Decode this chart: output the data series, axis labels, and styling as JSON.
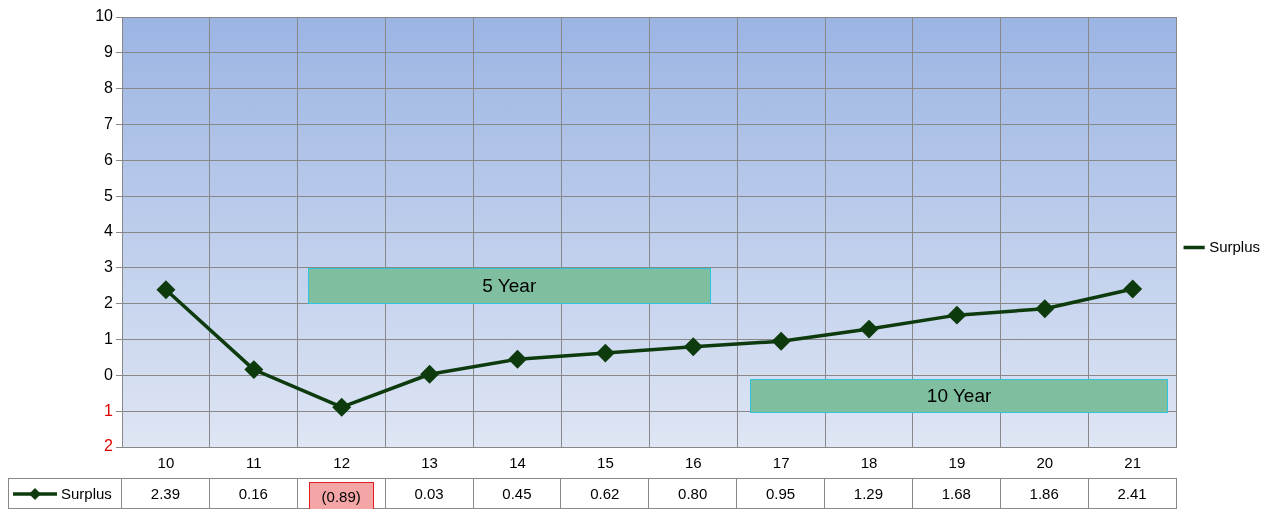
{
  "chart_data": {
    "type": "line",
    "categories": [
      "10",
      "11",
      "12",
      "13",
      "14",
      "15",
      "16",
      "17",
      "18",
      "19",
      "20",
      "21"
    ],
    "series": [
      {
        "name": "Surplus",
        "color": "#0d3b0d",
        "values": [
          2.39,
          0.16,
          -0.89,
          0.03,
          0.45,
          0.62,
          0.8,
          0.95,
          1.29,
          1.68,
          1.86,
          2.41
        ],
        "value_labels": [
          "2.39",
          "0.16",
          "(0.89)",
          "0.03",
          "0.45",
          "0.62",
          "0.80",
          "0.95",
          "1.29",
          "1.68",
          "1.86",
          "2.41"
        ]
      }
    ],
    "ylim": [
      -2,
      10
    ],
    "yticks": [
      {
        "value": -2,
        "label": "2"
      },
      {
        "value": -1,
        "label": "1"
      },
      0,
      1,
      2,
      3,
      4,
      5,
      6,
      7,
      8,
      9,
      10
    ],
    "annotations": [
      "5 Year",
      "10 Year"
    ],
    "grid": true,
    "legend": "right",
    "marker": "diamond",
    "line_style": "solid"
  }
}
